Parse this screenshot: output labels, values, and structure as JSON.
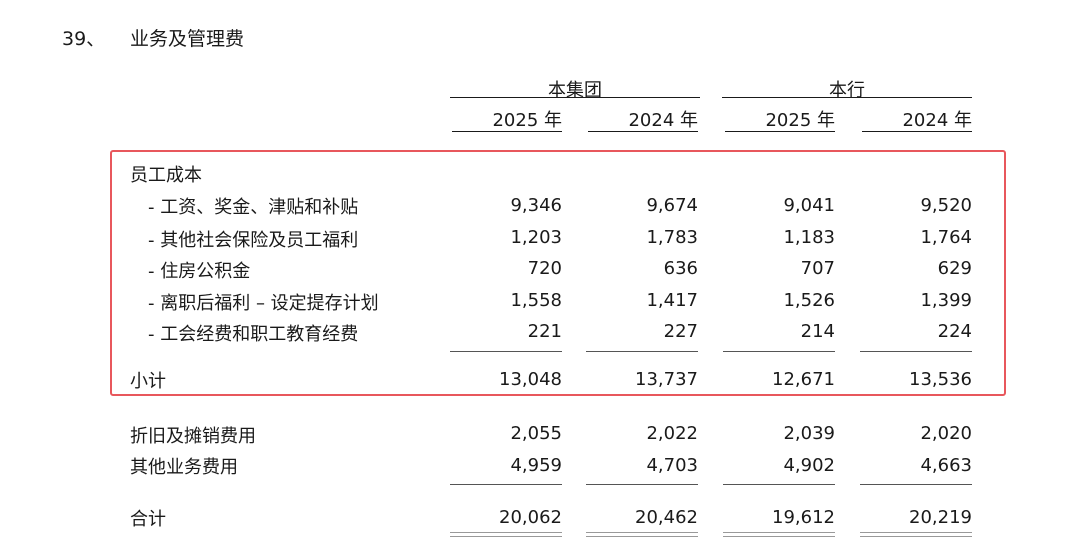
{
  "section": {
    "number": "39、",
    "title": "业务及管理费"
  },
  "groups": [
    {
      "label": "本集团"
    },
    {
      "label": "本行"
    }
  ],
  "years": [
    "2025 年",
    "2024 年",
    "2025 年",
    "2024 年"
  ],
  "staff_header": "员工成本",
  "staff_rows": [
    {
      "label": "- 工资、奖金、津贴和补贴",
      "values": [
        "9,346",
        "9,674",
        "9,041",
        "9,520"
      ]
    },
    {
      "label": "- 其他社会保险及员工福利",
      "values": [
        "1,203",
        "1,783",
        "1,183",
        "1,764"
      ]
    },
    {
      "label": "- 住房公积金",
      "values": [
        "720",
        "636",
        "707",
        "629"
      ]
    },
    {
      "label": "- 离职后福利 – 设定提存计划",
      "values": [
        "1,558",
        "1,417",
        "1,526",
        "1,399"
      ]
    },
    {
      "label": "- 工会经费和职工教育经费",
      "values": [
        "221",
        "227",
        "214",
        "224"
      ]
    }
  ],
  "subtotal": {
    "label": "小计",
    "values": [
      "13,048",
      "13,737",
      "12,671",
      "13,536"
    ]
  },
  "other_rows": [
    {
      "label": "折旧及摊销费用",
      "values": [
        "2,055",
        "2,022",
        "2,039",
        "2,020"
      ]
    },
    {
      "label": "其他业务费用",
      "values": [
        "4,959",
        "4,703",
        "4,902",
        "4,663"
      ]
    }
  ],
  "total": {
    "label": "合计",
    "values": [
      "20,062",
      "20,462",
      "19,612",
      "20,219"
    ]
  },
  "highlight_color": "#e8575c"
}
